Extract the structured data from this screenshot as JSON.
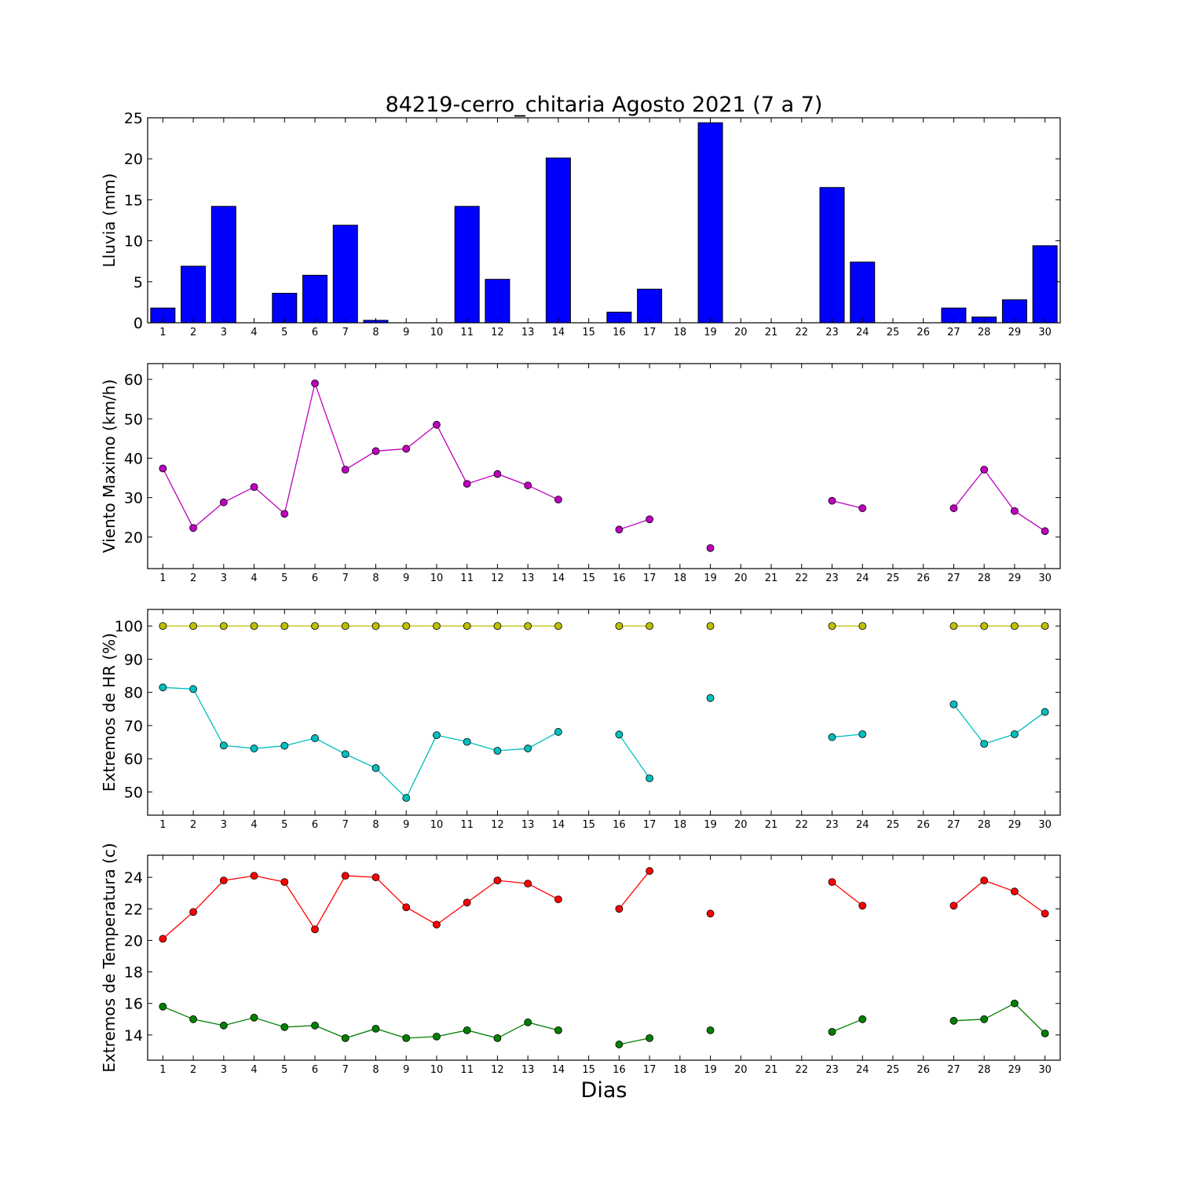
{
  "figure": {
    "title": "84219-cerro_chitaria Agosto 2021  (7 a 7)",
    "xlabel": "Dias"
  },
  "chart_data": [
    {
      "type": "bar",
      "ylabel": "Lluvia (mm)",
      "xlim": [
        0.5,
        30.5
      ],
      "ylim": [
        0,
        25
      ],
      "yticks": [
        0,
        5,
        10,
        15,
        20,
        25
      ],
      "xticks": [
        1,
        2,
        3,
        4,
        5,
        6,
        7,
        8,
        9,
        10,
        11,
        12,
        13,
        14,
        15,
        16,
        17,
        18,
        19,
        20,
        21,
        22,
        23,
        24,
        25,
        26,
        27,
        28,
        29,
        30
      ],
      "x": [
        1,
        2,
        3,
        4,
        5,
        6,
        7,
        8,
        9,
        10,
        11,
        12,
        13,
        14,
        15,
        16,
        17,
        18,
        19,
        20,
        21,
        22,
        23,
        24,
        25,
        26,
        27,
        28,
        29,
        30
      ],
      "series": [
        {
          "color": "#0000ff",
          "values": [
            1.8,
            6.9,
            14.2,
            0,
            3.6,
            5.8,
            11.9,
            0.3,
            0,
            0,
            14.2,
            5.3,
            null,
            20.1,
            0,
            1.3,
            4.1,
            null,
            24.4,
            0,
            0,
            0,
            16.5,
            7.4,
            0,
            0,
            1.8,
            0.7,
            2.8,
            9.4
          ]
        }
      ],
      "grid": false
    },
    {
      "type": "line",
      "ylabel": "Viento Maximo (km/h)",
      "xlim": [
        0.5,
        30.5
      ],
      "ylim": [
        12,
        64
      ],
      "yticks": [
        20,
        30,
        40,
        50,
        60
      ],
      "xticks": [
        1,
        2,
        3,
        4,
        5,
        6,
        7,
        8,
        9,
        10,
        11,
        12,
        13,
        14,
        15,
        16,
        17,
        18,
        19,
        20,
        21,
        22,
        23,
        24,
        25,
        26,
        27,
        28,
        29,
        30
      ],
      "x": [
        1,
        2,
        3,
        4,
        5,
        6,
        7,
        8,
        9,
        10,
        11,
        12,
        13,
        14,
        15,
        16,
        17,
        18,
        19,
        20,
        21,
        22,
        23,
        24,
        25,
        26,
        27,
        28,
        29,
        30
      ],
      "series": [
        {
          "color": "#bf00bf",
          "values": [
            37.4,
            22.3,
            28.8,
            32.7,
            25.9,
            59.0,
            37.1,
            41.8,
            42.4,
            48.5,
            33.5,
            36.0,
            33.1,
            29.5,
            null,
            21.9,
            24.5,
            null,
            17.2,
            null,
            null,
            null,
            29.2,
            27.3,
            null,
            null,
            27.3,
            37.1,
            26.6,
            21.5
          ]
        }
      ],
      "grid": false
    },
    {
      "type": "line",
      "ylabel": "Extremos de HR (%)",
      "xlim": [
        0.5,
        30.5
      ],
      "ylim": [
        43,
        105
      ],
      "yticks": [
        50,
        60,
        70,
        80,
        90,
        100
      ],
      "xticks": [
        1,
        2,
        3,
        4,
        5,
        6,
        7,
        8,
        9,
        10,
        11,
        12,
        13,
        14,
        15,
        16,
        17,
        18,
        19,
        20,
        21,
        22,
        23,
        24,
        25,
        26,
        27,
        28,
        29,
        30
      ],
      "x": [
        1,
        2,
        3,
        4,
        5,
        6,
        7,
        8,
        9,
        10,
        11,
        12,
        13,
        14,
        15,
        16,
        17,
        18,
        19,
        20,
        21,
        22,
        23,
        24,
        25,
        26,
        27,
        28,
        29,
        30
      ],
      "series": [
        {
          "color": "#bfbf00",
          "values": [
            100,
            100,
            100,
            100,
            100,
            100,
            100,
            100,
            100,
            100,
            100,
            100,
            100,
            100,
            null,
            100,
            100,
            null,
            100,
            null,
            null,
            null,
            100,
            100,
            null,
            null,
            100,
            100,
            100,
            100
          ]
        },
        {
          "color": "#00bfbf",
          "values": [
            81.5,
            81.0,
            64.0,
            63.1,
            63.9,
            66.2,
            61.4,
            57.2,
            48.2,
            67.1,
            65.1,
            62.4,
            63.1,
            68.1,
            null,
            67.3,
            54.1,
            null,
            78.3,
            null,
            null,
            null,
            66.5,
            67.4,
            null,
            null,
            76.4,
            64.5,
            67.4,
            74.1
          ]
        }
      ],
      "grid": false
    },
    {
      "type": "line",
      "ylabel": "Extremos de Temperatura (c)",
      "xlim": [
        0.5,
        30.5
      ],
      "ylim": [
        12.4,
        25.4
      ],
      "yticks": [
        14,
        16,
        18,
        20,
        22,
        24
      ],
      "xticks": [
        1,
        2,
        3,
        4,
        5,
        6,
        7,
        8,
        9,
        10,
        11,
        12,
        13,
        14,
        15,
        16,
        17,
        18,
        19,
        20,
        21,
        22,
        23,
        24,
        25,
        26,
        27,
        28,
        29,
        30
      ],
      "x": [
        1,
        2,
        3,
        4,
        5,
        6,
        7,
        8,
        9,
        10,
        11,
        12,
        13,
        14,
        15,
        16,
        17,
        18,
        19,
        20,
        21,
        22,
        23,
        24,
        25,
        26,
        27,
        28,
        29,
        30
      ],
      "series": [
        {
          "color": "#ff0000",
          "values": [
            20.1,
            21.8,
            23.8,
            24.1,
            23.7,
            20.7,
            24.1,
            24.0,
            22.1,
            21.0,
            22.4,
            23.8,
            23.6,
            22.6,
            null,
            22.0,
            24.4,
            null,
            21.7,
            null,
            null,
            null,
            23.7,
            22.2,
            null,
            null,
            22.2,
            23.8,
            23.1,
            21.7
          ]
        },
        {
          "color": "#008000",
          "values": [
            15.8,
            15.0,
            14.6,
            15.1,
            14.5,
            14.6,
            13.8,
            14.4,
            13.8,
            13.9,
            14.3,
            13.8,
            14.8,
            14.3,
            null,
            13.4,
            13.8,
            null,
            14.3,
            null,
            null,
            null,
            14.2,
            15.0,
            null,
            null,
            14.9,
            15.0,
            16.0,
            14.1
          ]
        }
      ],
      "grid": false
    }
  ]
}
